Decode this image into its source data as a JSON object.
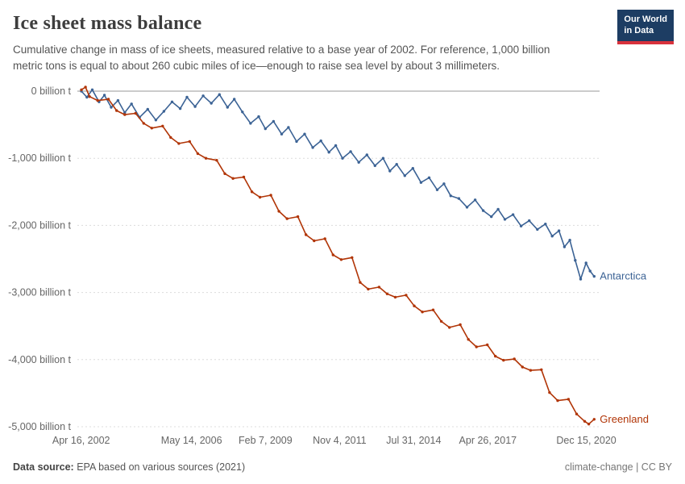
{
  "header": {
    "title": "Ice sheet mass balance",
    "subtitle": "Cumulative change in mass of ice sheets, measured relative to a base year of 2002. For reference, 1,000 billion metric tons is equal to about 260 cubic miles of ice—enough to raise sea level by about 3 millimeters.",
    "logo": {
      "line1": "Our World",
      "line2": "in Data"
    }
  },
  "chart_data": {
    "type": "line",
    "title": "Ice sheet mass balance",
    "xlabel": "",
    "ylabel": "billion metric tons",
    "xlim": [
      2002.15,
      2021.45
    ],
    "ylim": [
      -5000,
      0
    ],
    "grid": "horizontal-dashed, solid zero line",
    "legend_position": "end-of-line labels",
    "y_ticks": [
      {
        "value": 0,
        "label": "0 billion t"
      },
      {
        "value": -1000,
        "label": "-1,000 billion t"
      },
      {
        "value": -2000,
        "label": "-2,000 billion t"
      },
      {
        "value": -3000,
        "label": "-3,000 billion t"
      },
      {
        "value": -4000,
        "label": "-4,000 billion t"
      },
      {
        "value": -5000,
        "label": "-5,000 billion t"
      }
    ],
    "x_ticks": [
      {
        "x": 2002.29,
        "label": "Apr 16, 2002"
      },
      {
        "x": 2006.37,
        "label": "May 14, 2006"
      },
      {
        "x": 2009.1,
        "label": "Feb 7, 2009"
      },
      {
        "x": 2011.84,
        "label": "Nov 4, 2011"
      },
      {
        "x": 2014.58,
        "label": "Jul 31, 2014"
      },
      {
        "x": 2017.32,
        "label": "Apr 26, 2017"
      },
      {
        "x": 2020.96,
        "label": "Dec 15, 2020"
      }
    ],
    "series": [
      {
        "name": "Antarctica",
        "color": "#3c6395",
        "points": [
          [
            2002.3,
            0
          ],
          [
            2002.5,
            -90
          ],
          [
            2002.7,
            20
          ],
          [
            2002.95,
            -160
          ],
          [
            2003.15,
            -60
          ],
          [
            2003.4,
            -240
          ],
          [
            2003.65,
            -140
          ],
          [
            2003.9,
            -320
          ],
          [
            2004.15,
            -190
          ],
          [
            2004.45,
            -390
          ],
          [
            2004.75,
            -270
          ],
          [
            2005.05,
            -430
          ],
          [
            2005.35,
            -300
          ],
          [
            2005.65,
            -160
          ],
          [
            2005.95,
            -260
          ],
          [
            2006.2,
            -90
          ],
          [
            2006.5,
            -230
          ],
          [
            2006.8,
            -70
          ],
          [
            2007.1,
            -180
          ],
          [
            2007.4,
            -50
          ],
          [
            2007.7,
            -240
          ],
          [
            2007.95,
            -120
          ],
          [
            2008.25,
            -310
          ],
          [
            2008.55,
            -480
          ],
          [
            2008.85,
            -380
          ],
          [
            2009.1,
            -560
          ],
          [
            2009.4,
            -450
          ],
          [
            2009.7,
            -640
          ],
          [
            2009.95,
            -540
          ],
          [
            2010.25,
            -750
          ],
          [
            2010.55,
            -640
          ],
          [
            2010.85,
            -840
          ],
          [
            2011.15,
            -740
          ],
          [
            2011.45,
            -910
          ],
          [
            2011.7,
            -810
          ],
          [
            2011.95,
            -1000
          ],
          [
            2012.25,
            -900
          ],
          [
            2012.55,
            -1060
          ],
          [
            2012.85,
            -950
          ],
          [
            2013.15,
            -1110
          ],
          [
            2013.45,
            -1000
          ],
          [
            2013.7,
            -1190
          ],
          [
            2013.95,
            -1090
          ],
          [
            2014.25,
            -1260
          ],
          [
            2014.55,
            -1150
          ],
          [
            2014.85,
            -1360
          ],
          [
            2015.15,
            -1290
          ],
          [
            2015.45,
            -1470
          ],
          [
            2015.7,
            -1380
          ],
          [
            2015.95,
            -1560
          ],
          [
            2016.25,
            -1600
          ],
          [
            2016.55,
            -1730
          ],
          [
            2016.85,
            -1620
          ],
          [
            2017.15,
            -1780
          ],
          [
            2017.45,
            -1870
          ],
          [
            2017.7,
            -1760
          ],
          [
            2017.95,
            -1910
          ],
          [
            2018.25,
            -1840
          ],
          [
            2018.55,
            -2010
          ],
          [
            2018.85,
            -1930
          ],
          [
            2019.15,
            -2060
          ],
          [
            2019.45,
            -1980
          ],
          [
            2019.7,
            -2160
          ],
          [
            2019.95,
            -2080
          ],
          [
            2020.15,
            -2320
          ],
          [
            2020.35,
            -2220
          ],
          [
            2020.55,
            -2520
          ],
          [
            2020.75,
            -2800
          ],
          [
            2020.95,
            -2560
          ],
          [
            2021.1,
            -2680
          ],
          [
            2021.25,
            -2760
          ]
        ]
      },
      {
        "name": "Greenland",
        "color": "#b13507",
        "points": [
          [
            2002.3,
            20
          ],
          [
            2002.45,
            60
          ],
          [
            2002.6,
            -80
          ],
          [
            2002.9,
            -140
          ],
          [
            2003.3,
            -120
          ],
          [
            2003.6,
            -290
          ],
          [
            2003.9,
            -350
          ],
          [
            2004.3,
            -330
          ],
          [
            2004.6,
            -480
          ],
          [
            2004.9,
            -550
          ],
          [
            2005.3,
            -520
          ],
          [
            2005.6,
            -690
          ],
          [
            2005.9,
            -780
          ],
          [
            2006.3,
            -750
          ],
          [
            2006.6,
            -930
          ],
          [
            2006.9,
            -1000
          ],
          [
            2007.3,
            -1030
          ],
          [
            2007.6,
            -1230
          ],
          [
            2007.9,
            -1300
          ],
          [
            2008.3,
            -1280
          ],
          [
            2008.6,
            -1500
          ],
          [
            2008.9,
            -1580
          ],
          [
            2009.3,
            -1550
          ],
          [
            2009.6,
            -1790
          ],
          [
            2009.9,
            -1900
          ],
          [
            2010.3,
            -1870
          ],
          [
            2010.6,
            -2140
          ],
          [
            2010.9,
            -2230
          ],
          [
            2011.3,
            -2200
          ],
          [
            2011.6,
            -2440
          ],
          [
            2011.9,
            -2510
          ],
          [
            2012.3,
            -2480
          ],
          [
            2012.6,
            -2850
          ],
          [
            2012.9,
            -2950
          ],
          [
            2013.3,
            -2920
          ],
          [
            2013.6,
            -3020
          ],
          [
            2013.9,
            -3070
          ],
          [
            2014.3,
            -3040
          ],
          [
            2014.6,
            -3200
          ],
          [
            2014.9,
            -3290
          ],
          [
            2015.3,
            -3260
          ],
          [
            2015.6,
            -3430
          ],
          [
            2015.9,
            -3520
          ],
          [
            2016.3,
            -3480
          ],
          [
            2016.6,
            -3700
          ],
          [
            2016.9,
            -3810
          ],
          [
            2017.3,
            -3780
          ],
          [
            2017.6,
            -3950
          ],
          [
            2017.9,
            -4010
          ],
          [
            2018.3,
            -3990
          ],
          [
            2018.6,
            -4110
          ],
          [
            2018.9,
            -4160
          ],
          [
            2019.3,
            -4150
          ],
          [
            2019.6,
            -4490
          ],
          [
            2019.9,
            -4610
          ],
          [
            2020.3,
            -4590
          ],
          [
            2020.6,
            -4810
          ],
          [
            2020.9,
            -4920
          ],
          [
            2021.05,
            -4960
          ],
          [
            2021.25,
            -4890
          ]
        ]
      }
    ]
  },
  "footer": {
    "source_label": "Data source:",
    "source_text": " EPA based on various sources (2021)",
    "right": "climate-change | CC BY"
  }
}
